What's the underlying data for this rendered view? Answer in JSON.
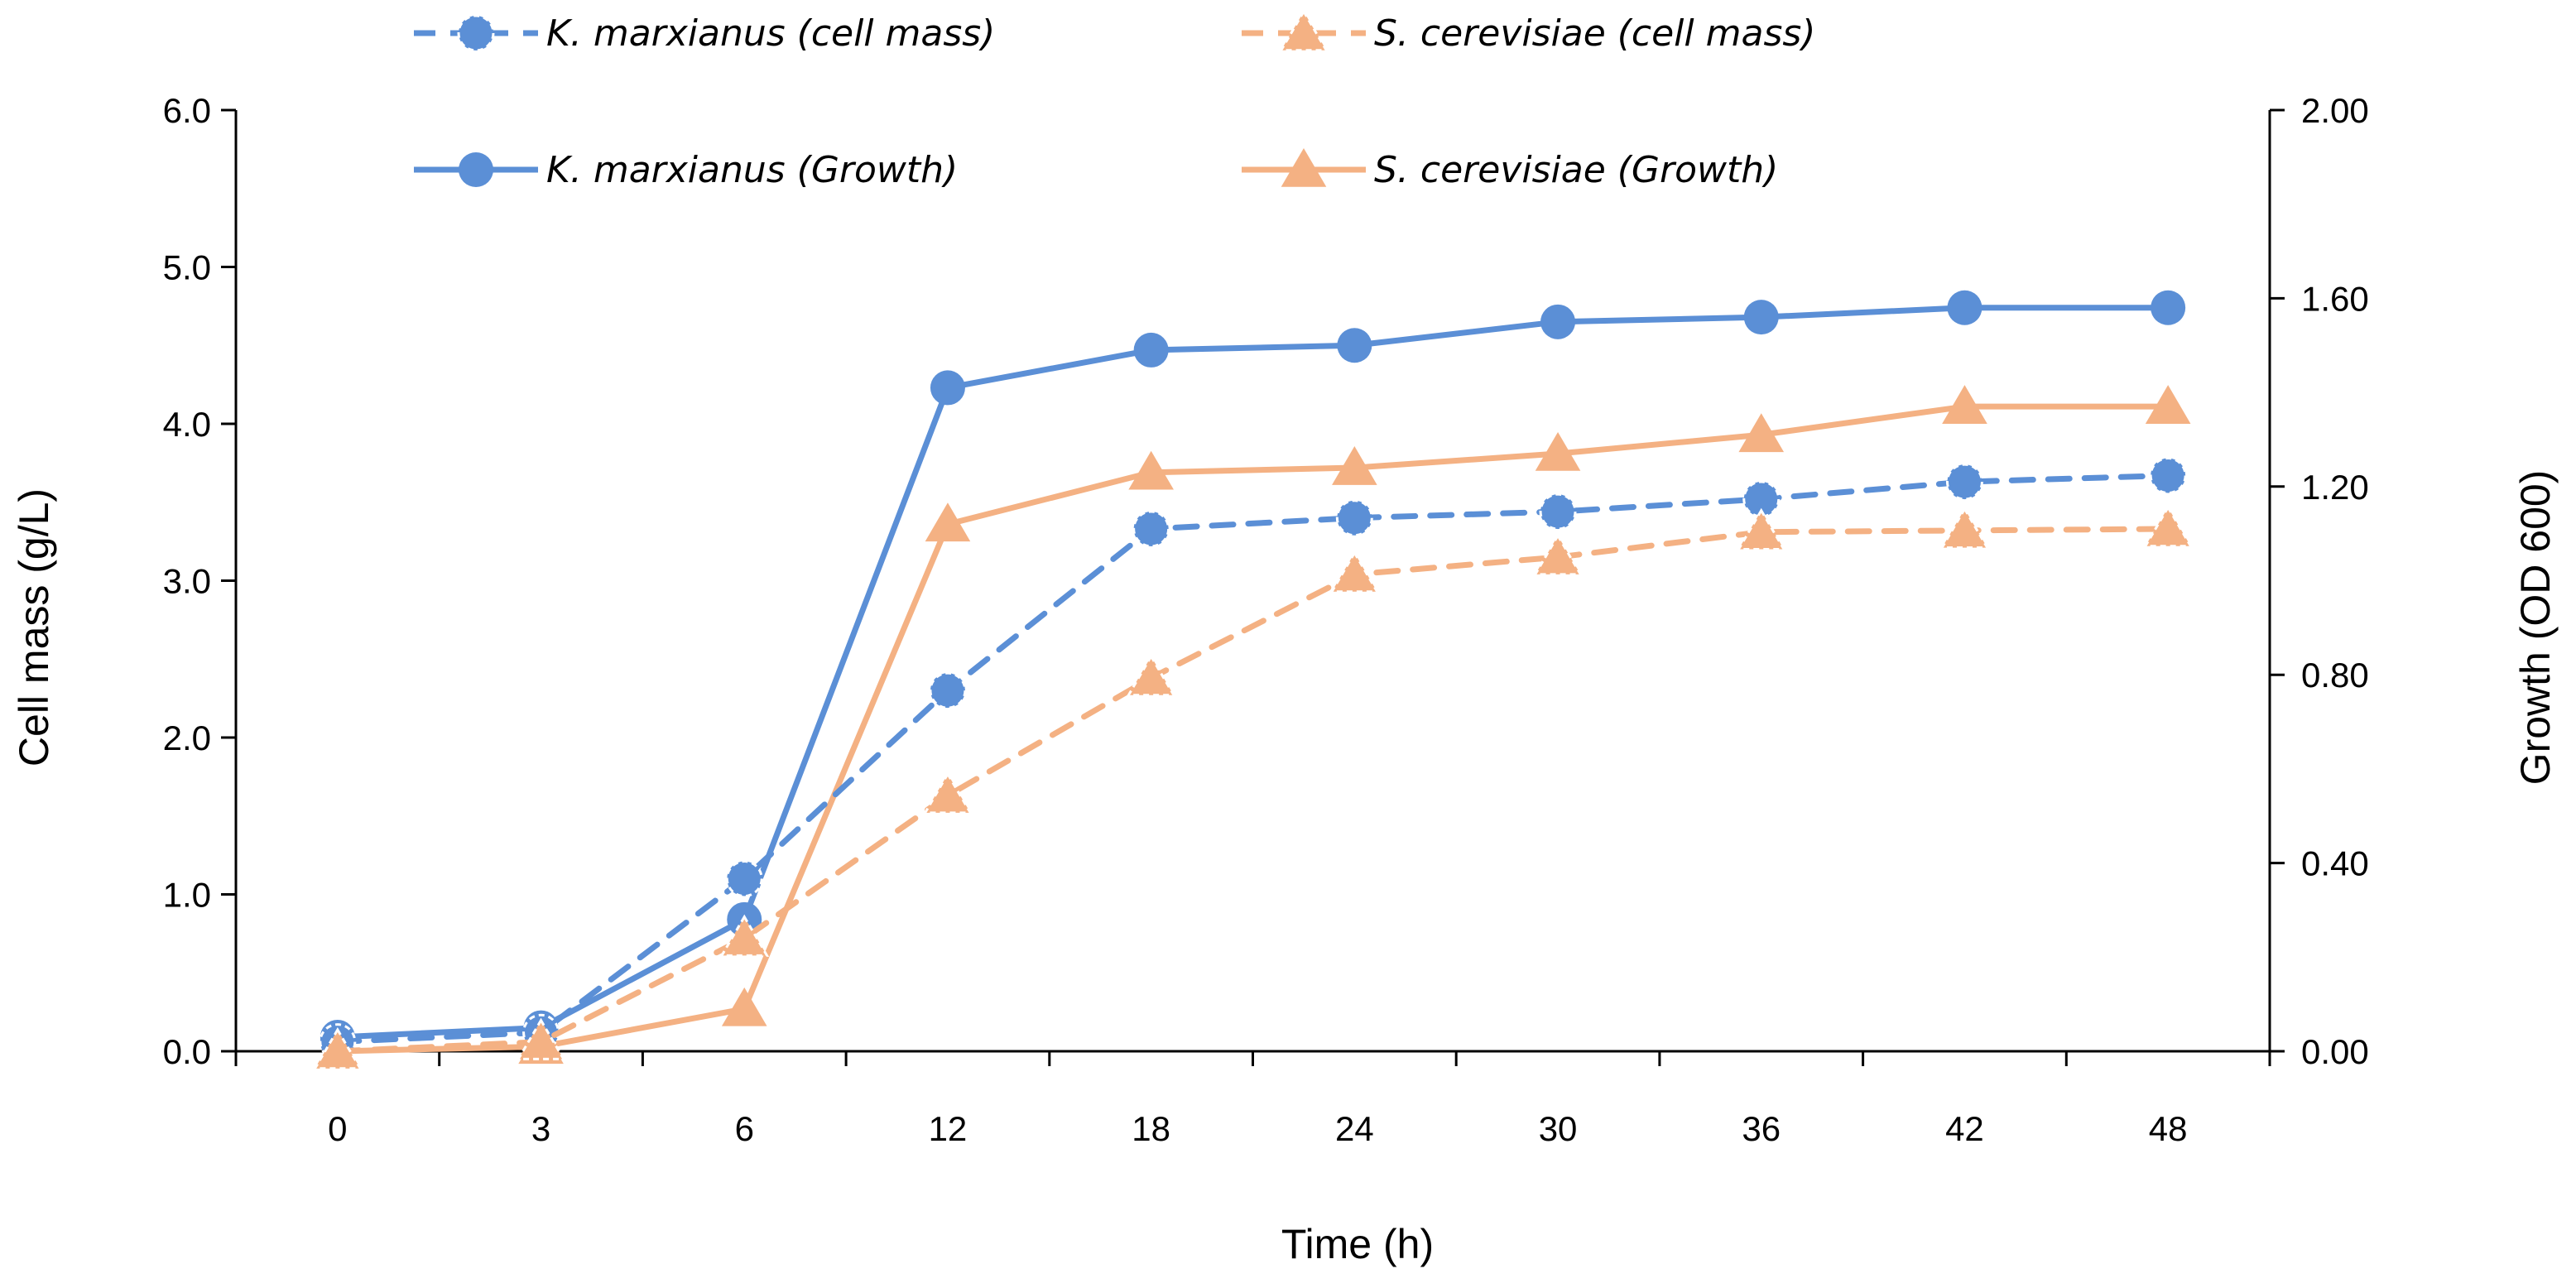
{
  "chart_data": {
    "type": "line",
    "x": [
      "0",
      "3",
      "6",
      "12",
      "18",
      "24",
      "30",
      "36",
      "42",
      "48"
    ],
    "xlabel": "Time (h)",
    "ylabel_left": "Cell mass (g/L)",
    "ylabel_right": "Growth (OD 600)",
    "ylim_left": [
      0,
      6.0
    ],
    "ylim_right": [
      0,
      2.0
    ],
    "yticks_left": [
      "0.0",
      "1.0",
      "2.0",
      "3.0",
      "4.0",
      "5.0",
      "6.0"
    ],
    "yticks_right": [
      "0.00",
      "0.40",
      "0.80",
      "1.20",
      "1.60",
      "2.00"
    ],
    "grid": false,
    "legend_position": "top",
    "series": [
      {
        "name": "K. marxianus (cell mass)",
        "axis": "left",
        "color": "#5b8fd6",
        "line": "dashed",
        "marker": "circle",
        "values": [
          0.06,
          0.12,
          1.1,
          2.3,
          3.33,
          3.4,
          3.44,
          3.52,
          3.63,
          3.67
        ]
      },
      {
        "name": "S. cerevisiae (cell mass)",
        "axis": "left",
        "color": "#f4b183",
        "line": "dashed",
        "marker": "triangle",
        "values": [
          0.0,
          0.06,
          0.72,
          1.63,
          2.38,
          3.04,
          3.15,
          3.31,
          3.32,
          3.33
        ]
      },
      {
        "name": "K. marxianus (Growth)",
        "axis": "right",
        "color": "#5b8fd6",
        "line": "solid",
        "marker": "circle",
        "values": [
          0.03,
          0.05,
          0.28,
          1.41,
          1.49,
          1.5,
          1.55,
          1.56,
          1.58,
          1.58
        ]
      },
      {
        "name": "S. cerevisiae (Growth)",
        "axis": "right",
        "color": "#f4b183",
        "line": "solid",
        "marker": "triangle",
        "values": [
          0.0,
          0.01,
          0.09,
          1.12,
          1.23,
          1.24,
          1.27,
          1.31,
          1.37,
          1.37
        ]
      }
    ]
  }
}
